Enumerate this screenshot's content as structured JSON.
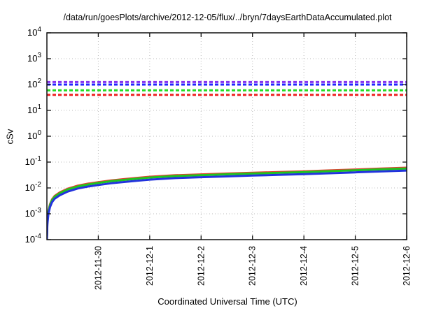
{
  "chart_data": {
    "type": "line",
    "title": "/data/run/goesPlots/archive/2012-12-05/flux/../bryn/7daysEarthDataAccumulated.plot",
    "xlabel": "Coordinated Universal Time (UTC)",
    "ylabel": "cSv",
    "y_scale": "log",
    "ylim": [
      0.0001,
      10000
    ],
    "y_tick_exponents": [
      4,
      3,
      2,
      1,
      0,
      -1,
      -2,
      -3,
      -4
    ],
    "x_axis_start_date": "2012-11-29",
    "x_axis_span_days": 7,
    "x_ticks": [
      {
        "label": "2012-11-30",
        "day": 1
      },
      {
        "label": "2012-12-1",
        "day": 2
      },
      {
        "label": "2012-12-2",
        "day": 3
      },
      {
        "label": "2012-12-3",
        "day": 4
      },
      {
        "label": "2012-12-4",
        "day": 5
      },
      {
        "label": "2012-12-5",
        "day": 6
      },
      {
        "label": "2012-12-6",
        "day": 7
      }
    ],
    "grid": true,
    "grid_color": "#bdbdbd",
    "axis_color": "#111111",
    "legend": "none",
    "threshold_lines": [
      {
        "name": "purple-threshold",
        "color": "#8833ee",
        "value": 125
      },
      {
        "name": "blue-threshold",
        "color": "#2222ff",
        "value": 100
      },
      {
        "name": "green-threshold",
        "color": "#22dd22",
        "value": 60
      },
      {
        "name": "red-threshold",
        "color": "#ee2222",
        "value": 40
      }
    ],
    "series": [
      {
        "name": "accumulated-dose-red",
        "color": "#dd4433",
        "x_days": [
          0,
          0.01,
          0.03,
          0.06,
          0.1,
          0.15,
          0.25,
          0.4,
          0.6,
          0.8,
          1.0,
          1.25,
          1.5,
          1.75,
          2.0,
          2.5,
          3.0,
          3.5,
          4.0,
          4.5,
          5.0,
          5.5,
          6.0,
          6.5,
          7.0
        ],
        "values": [
          0.000129,
          0.000516,
          0.00129,
          0.00232,
          0.00361,
          0.0049,
          0.00671,
          0.00929,
          0.01226,
          0.01458,
          0.01677,
          0.01961,
          0.02193,
          0.02451,
          0.02709,
          0.03096,
          0.03354,
          0.03612,
          0.0387,
          0.04128,
          0.04386,
          0.04773,
          0.0516,
          0.05612,
          0.06063
        ]
      },
      {
        "name": "accumulated-dose-green",
        "color": "#1fc41f",
        "x_days": [
          0,
          0.01,
          0.03,
          0.06,
          0.1,
          0.15,
          0.25,
          0.4,
          0.6,
          0.8,
          1.0,
          1.25,
          1.5,
          1.75,
          2.0,
          2.5,
          3.0,
          3.5,
          4.0,
          4.5,
          5.0,
          5.5,
          6.0,
          6.5,
          7.0
        ],
        "values": [
          0.00012,
          0.00048,
          0.0012,
          0.00216,
          0.00336,
          0.00456,
          0.00624,
          0.00864,
          0.0114,
          0.01356,
          0.0156,
          0.01824,
          0.0204,
          0.0228,
          0.0252,
          0.0288,
          0.0312,
          0.0336,
          0.036,
          0.0384,
          0.0408,
          0.0444,
          0.048,
          0.0522,
          0.0564
        ]
      },
      {
        "name": "accumulated-dose-blue",
        "color": "#2233dd",
        "x_days": [
          0,
          0.01,
          0.03,
          0.06,
          0.1,
          0.15,
          0.25,
          0.4,
          0.6,
          0.8,
          1.0,
          1.25,
          1.5,
          1.75,
          2.0,
          2.5,
          3.0,
          3.5,
          4.0,
          4.5,
          5.0,
          5.5,
          6.0,
          6.5,
          7.0
        ],
        "values": [
          0.0001,
          0.0004,
          0.001,
          0.0018,
          0.0028,
          0.0038,
          0.0052,
          0.0072,
          0.0095,
          0.0113,
          0.013,
          0.0152,
          0.017,
          0.019,
          0.021,
          0.024,
          0.026,
          0.028,
          0.03,
          0.032,
          0.034,
          0.037,
          0.04,
          0.0435,
          0.047
        ]
      }
    ]
  }
}
